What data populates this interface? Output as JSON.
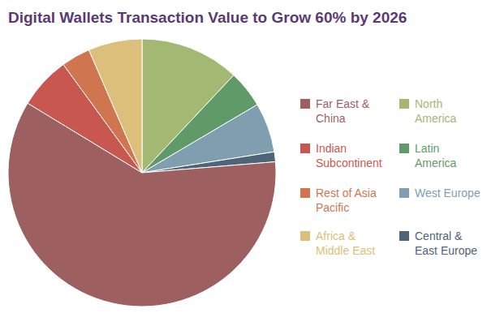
{
  "chart_data": {
    "type": "pie",
    "title": "Digital Wallets Transaction Value to Grow 60% by 2026",
    "categories": [
      "North America",
      "Latin America",
      "West Europe",
      "Central & East Europe",
      "Far East & China",
      "Indian Subcontinent",
      "Rest of Asia Pacific",
      "Africa & Middle East"
    ],
    "values": [
      12,
      4.5,
      6,
      1.2,
      60,
      6.3,
      3.5,
      6.5
    ],
    "colors": [
      "#a3b873",
      "#5f9a68",
      "#7f9fb1",
      "#4d6479",
      "#9d5f5f",
      "#c8574f",
      "#cf7650",
      "#dcbf7a"
    ]
  }
}
